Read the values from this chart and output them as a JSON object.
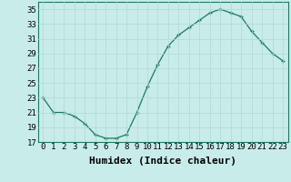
{
  "x": [
    0,
    1,
    2,
    3,
    4,
    5,
    6,
    7,
    8,
    9,
    10,
    11,
    12,
    13,
    14,
    15,
    16,
    17,
    18,
    19,
    20,
    21,
    22,
    23
  ],
  "y": [
    23,
    21,
    21,
    20.5,
    19.5,
    18,
    17.5,
    17.5,
    18,
    21,
    24.5,
    27.5,
    30,
    31.5,
    32.5,
    33.5,
    34.5,
    35,
    34.5,
    34,
    32,
    30.5,
    29,
    28
  ],
  "xlabel": "Humidex (Indice chaleur)",
  "ylim": [
    17,
    36
  ],
  "xlim": [
    -0.5,
    23.5
  ],
  "yticks": [
    17,
    19,
    21,
    23,
    25,
    27,
    29,
    31,
    33,
    35
  ],
  "xticks": [
    0,
    1,
    2,
    3,
    4,
    5,
    6,
    7,
    8,
    9,
    10,
    11,
    12,
    13,
    14,
    15,
    16,
    17,
    18,
    19,
    20,
    21,
    22,
    23
  ],
  "line_color": "#1a7a5e",
  "marker": "+",
  "bg_color": "#c8ecea",
  "grid_color": "#b0d8d0",
  "tick_fontsize": 6.5,
  "xlabel_fontsize": 8
}
